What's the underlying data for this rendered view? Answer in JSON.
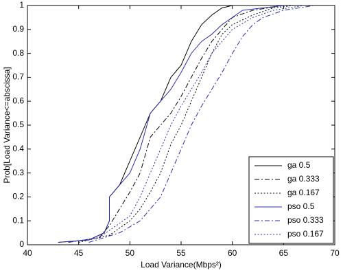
{
  "chart_data": {
    "type": "line",
    "xlabel": "Load Variance(Mbps²)",
    "ylabel": "Prob[Load Variance<=abscissa]",
    "xlim": [
      40,
      70
    ],
    "xticks": [
      40,
      45,
      50,
      55,
      60,
      65,
      70
    ],
    "ylim": [
      0,
      1
    ],
    "yticks": [
      0,
      0.1,
      0.2,
      0.3,
      0.4,
      0.5,
      0.6,
      0.7,
      0.8,
      0.9,
      1
    ],
    "grid": false,
    "legend": "southeast",
    "series": [
      {
        "name": "ga 0.5",
        "color": "#000000",
        "dash": "solid",
        "x": [
          43,
          46,
          47.5,
          48,
          48,
          49,
          50,
          51,
          52,
          53,
          54,
          55,
          56,
          57,
          58,
          59,
          60
        ],
        "values": [
          0.01,
          0.02,
          0.05,
          0.1,
          0.2,
          0.25,
          0.35,
          0.45,
          0.55,
          0.6,
          0.7,
          0.75,
          0.85,
          0.92,
          0.96,
          0.99,
          1
        ]
      },
      {
        "name": "ga 0.333",
        "color": "#000000",
        "dash": "dashdot",
        "x": [
          44,
          47,
          48,
          49,
          50,
          51,
          52,
          53,
          54,
          55,
          56,
          57,
          58,
          59,
          60,
          62,
          65
        ],
        "values": [
          0.01,
          0.03,
          0.08,
          0.15,
          0.22,
          0.3,
          0.45,
          0.5,
          0.55,
          0.62,
          0.7,
          0.78,
          0.85,
          0.9,
          0.95,
          0.98,
          1
        ]
      },
      {
        "name": "ga 0.167",
        "color": "#000000",
        "dash": "dotted",
        "x": [
          45,
          48,
          50,
          51,
          52,
          53,
          54,
          55,
          56,
          57,
          58,
          59,
          60,
          62,
          64,
          66
        ],
        "values": [
          0.01,
          0.04,
          0.1,
          0.15,
          0.22,
          0.3,
          0.42,
          0.5,
          0.6,
          0.7,
          0.8,
          0.88,
          0.92,
          0.96,
          0.99,
          1
        ]
      },
      {
        "name": "pso 0.5",
        "color": "#2b2bb0",
        "dash": "solid",
        "x": [
          43,
          46,
          47.5,
          48,
          48,
          49,
          50,
          51,
          52,
          53,
          54,
          55,
          56,
          57,
          58,
          59,
          60,
          61,
          63,
          65
        ],
        "values": [
          0.01,
          0.02,
          0.05,
          0.1,
          0.2,
          0.25,
          0.3,
          0.4,
          0.55,
          0.6,
          0.65,
          0.72,
          0.8,
          0.85,
          0.88,
          0.92,
          0.95,
          0.98,
          0.99,
          1
        ]
      },
      {
        "name": "pso 0.333",
        "color": "#2b2bb0",
        "dash": "dashdot",
        "x": [
          46,
          49,
          51,
          52,
          53,
          54,
          55,
          56,
          57,
          58,
          59,
          60,
          61,
          62,
          63,
          65,
          68
        ],
        "values": [
          0.01,
          0.05,
          0.1,
          0.15,
          0.2,
          0.3,
          0.4,
          0.5,
          0.58,
          0.65,
          0.72,
          0.8,
          0.87,
          0.92,
          0.95,
          0.98,
          1
        ]
      },
      {
        "name": "pso 0.167",
        "color": "#2b2bb0",
        "dash": "dotted",
        "x": [
          44,
          47,
          48,
          50,
          51,
          52,
          53,
          54,
          55,
          56,
          57,
          58,
          59,
          60,
          62,
          64,
          67
        ],
        "values": [
          0.01,
          0.03,
          0.06,
          0.12,
          0.2,
          0.3,
          0.4,
          0.5,
          0.58,
          0.65,
          0.72,
          0.8,
          0.85,
          0.9,
          0.95,
          0.98,
          1
        ]
      }
    ]
  }
}
